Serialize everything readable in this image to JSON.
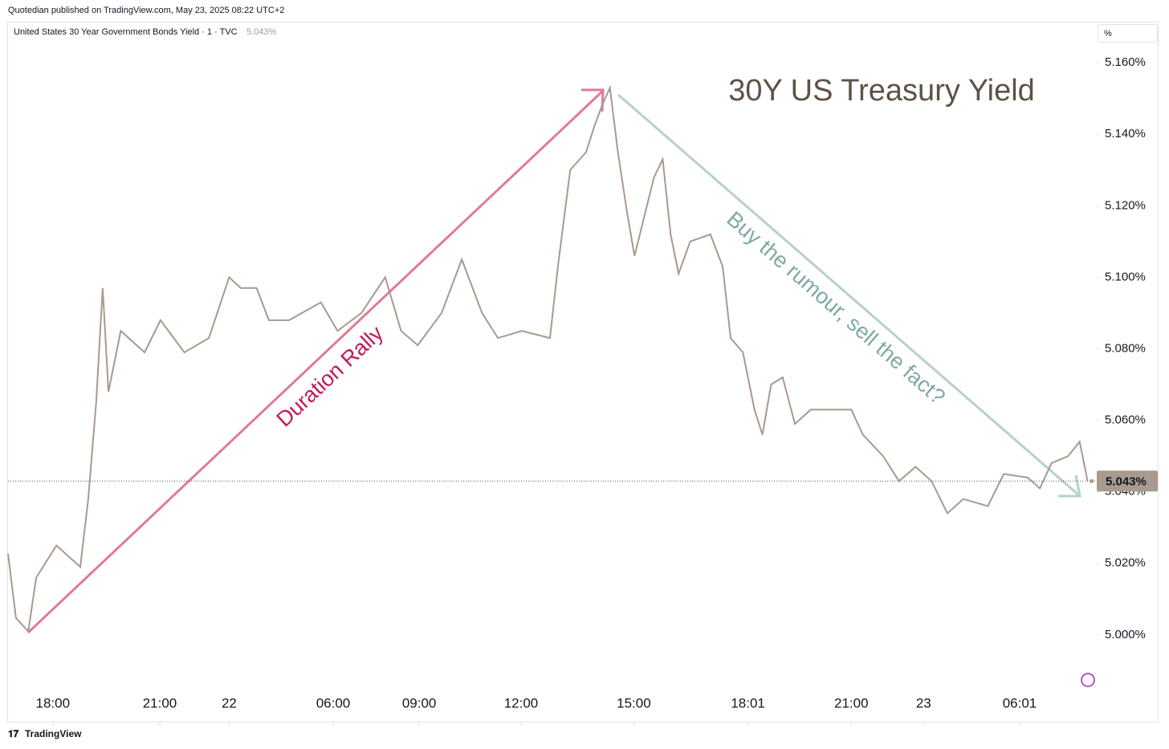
{
  "chart_data": {
    "type": "line",
    "header": "Quotedian published on TradingView.com, May 23, 2025 08:22 UTC+2",
    "title": "30Y US Treasury Yield",
    "unit_label": "%",
    "annotations": [
      "Duration Rally",
      "Buy the rumour, sell the fact?"
    ],
    "footer": "TradingView",
    "last_value": 5.043,
    "last_value_label": "5.043%",
    "x": [
      0,
      1.1,
      2.8,
      3.9,
      6.7,
      10,
      11.1,
      12.2,
      13.1,
      13.9,
      15.6,
      18.9,
      21.1,
      24.4,
      27.8,
      30.6,
      32.2,
      34.4,
      36.1,
      38.9,
      43.3,
      45.6,
      48.9,
      52.2,
      54.4,
      56.7,
      60,
      62.8,
      65.6,
      67.8,
      71.1,
      75,
      76.1,
      77.8,
      80,
      81.1,
      82.2,
      83.3,
      84.4,
      85.6,
      86.7,
      88.3,
      89.4,
      90.6,
      91.7,
      92.8,
      94.4,
      97.2,
      98.9,
      100,
      101.7,
      103.3,
      104.4,
      105.6,
      107.2,
      108.9,
      111.1,
      114.4,
      116.7,
      118.3,
      121.1,
      123.3,
      125.6,
      127.8,
      130,
      132.2,
      135.6,
      137.8,
      141.1,
      142.8,
      144.4,
      146.7,
      148.3,
      149.4
    ],
    "series": [
      {
        "name": "United States 30 Year Government Bonds Yield · 1 · TVC",
        "color": "#a89a8c",
        "values": [
          5.0227,
          5.0047,
          5.001,
          5.016,
          5.025,
          5.019,
          5.038,
          5.065,
          5.097,
          5.068,
          5.085,
          5.079,
          5.088,
          5.079,
          5.083,
          5.1,
          5.097,
          5.097,
          5.088,
          5.088,
          5.093,
          5.085,
          5.09,
          5.1,
          5.085,
          5.081,
          5.09,
          5.105,
          5.09,
          5.083,
          5.085,
          5.083,
          5.103,
          5.13,
          5.135,
          5.142,
          5.148,
          5.153,
          5.135,
          5.119,
          5.106,
          5.119,
          5.128,
          5.133,
          5.112,
          5.101,
          5.11,
          5.112,
          5.103,
          5.083,
          5.079,
          5.063,
          5.056,
          5.07,
          5.072,
          5.059,
          5.063,
          5.063,
          5.063,
          5.056,
          5.05,
          5.043,
          5.047,
          5.043,
          5.034,
          5.038,
          5.036,
          5.045,
          5.044,
          5.041,
          5.048,
          5.05,
          5.054,
          5.043
        ]
      }
    ],
    "xlim": [
      0,
      150
    ],
    "xticks": [
      {
        "value": 6.2,
        "label": "18:00"
      },
      {
        "value": 21,
        "label": "21:00"
      },
      {
        "value": 30.6,
        "label": "22"
      },
      {
        "value": 45,
        "label": "06:00"
      },
      {
        "value": 56.9,
        "label": "09:00"
      },
      {
        "value": 71,
        "label": "12:00"
      },
      {
        "value": 86.6,
        "label": "15:00"
      },
      {
        "value": 102.4,
        "label": "18:01"
      },
      {
        "value": 116.7,
        "label": "21:00"
      },
      {
        "value": 126.7,
        "label": "23"
      },
      {
        "value": 140,
        "label": "06:01"
      }
    ],
    "ylim": [
      4.9755,
      5.1708
    ],
    "yticks": [
      {
        "value": 5.0,
        "label": "5.000%"
      },
      {
        "value": 5.02,
        "label": "5.020%"
      },
      {
        "value": 5.04,
        "label": "5.040%"
      },
      {
        "value": 5.06,
        "label": "5.060%"
      },
      {
        "value": 5.08,
        "label": "5.080%"
      },
      {
        "value": 5.1,
        "label": "5.100%"
      },
      {
        "value": 5.12,
        "label": "5.120%"
      },
      {
        "value": 5.14,
        "label": "5.140%"
      },
      {
        "value": 5.16,
        "label": "5.160%"
      }
    ]
  }
}
